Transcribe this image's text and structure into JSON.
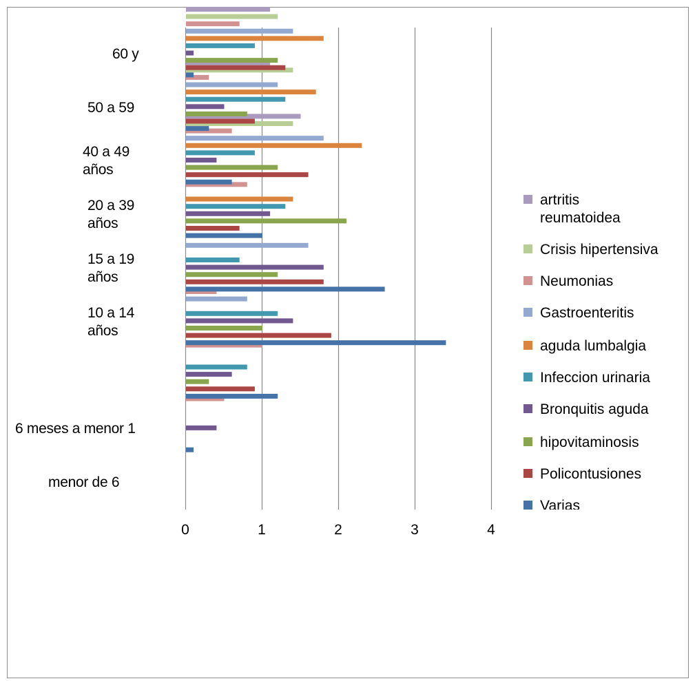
{
  "chart_data": {
    "type": "bar",
    "orientation": "horizontal",
    "categories": [
      "menor de 6",
      "6 meses a menor 1",
      "",
      "10 a 14 años",
      "15 a 19 años",
      "20 a 39 años",
      "40 a 49 años",
      "50 a 59",
      "60 y"
    ],
    "xlim": [
      0,
      4
    ],
    "xticks": [
      "0",
      "1",
      "2",
      "3",
      "4"
    ],
    "grid": true,
    "legend_position": "right",
    "series": [
      {
        "name": "Varias",
        "color": "#4572a7",
        "values": [
          0,
          0.1,
          1.2,
          3.4,
          2.6,
          1.0,
          0.6,
          0.3,
          0.1
        ]
      },
      {
        "name": "Policontusiones",
        "color": "#aa4643",
        "values": [
          0,
          0,
          0.9,
          1.9,
          1.8,
          0.7,
          1.6,
          0.9,
          1.3
        ]
      },
      {
        "name": "hipovitaminosis",
        "color": "#89a54e",
        "values": [
          0,
          0,
          0.3,
          1.0,
          1.2,
          2.1,
          1.2,
          0.8,
          1.2
        ]
      },
      {
        "name": "Bronquitis aguda",
        "color": "#71588f",
        "values": [
          0,
          0.4,
          0.6,
          1.4,
          1.8,
          1.1,
          0.4,
          0.5,
          0.1
        ]
      },
      {
        "name": "Infeccion urinaria",
        "color": "#4198af",
        "values": [
          0,
          0,
          0.8,
          1.2,
          0.7,
          1.3,
          0.9,
          1.3,
          0.9
        ]
      },
      {
        "name": "aguda lumbalgia",
        "color": "#db843d",
        "values": [
          0,
          0,
          0,
          0,
          0,
          1.4,
          2.3,
          1.7,
          1.8
        ]
      },
      {
        "name": "Gastroenteritis",
        "color": "#93a9cf",
        "values": [
          0,
          0,
          0,
          0.8,
          1.6,
          0,
          1.8,
          1.2,
          1.4
        ]
      },
      {
        "name": "Neumonias",
        "color": "#d19392",
        "values": [
          0,
          0.5,
          1.0,
          0.4,
          0,
          0.8,
          0.6,
          0.3,
          0.7
        ]
      },
      {
        "name": "Crisis hipertensiva",
        "color": "#b9cd96",
        "values": [
          0,
          0,
          0,
          0,
          0,
          0,
          1.4,
          1.4,
          1.2
        ]
      },
      {
        "name": "artritis reumatoidea",
        "color": "#a99bbd",
        "values": [
          0,
          0,
          0,
          0,
          0,
          0,
          1.5,
          1.1,
          1.1
        ]
      }
    ],
    "category_labels": [
      {
        "lines": [
          "menor de 6"
        ]
      },
      {
        "lines": [
          "6 meses a menor 1"
        ]
      },
      {
        "lines": []
      },
      {
        "lines": [
          "10 a 14",
          "años"
        ]
      },
      {
        "lines": [
          "15 a 19",
          "años"
        ]
      },
      {
        "lines": [
          "20 a 39",
          "años"
        ]
      },
      {
        "lines": [
          "40 a 49",
          "años"
        ]
      },
      {
        "lines": [
          "50 a 59"
        ]
      },
      {
        "lines": [
          "60 y"
        ]
      }
    ],
    "legend": [
      {
        "text": "artritis reumatoidea",
        "color": "#a99bbd"
      },
      {
        "text": "Crisis hipertensiva",
        "color": "#b9cd96"
      },
      {
        "text": "Neumonias",
        "color": "#d19392"
      },
      {
        "text": "Gastroenteritis",
        "color": "#93a9cf"
      },
      {
        "text": "aguda lumbalgia",
        "color": "#db843d"
      },
      {
        "text": "Infeccion urinaria",
        "color": "#4198af"
      },
      {
        "text": "Bronquitis aguda",
        "color": "#71588f"
      },
      {
        "text": "hipovitaminosis",
        "color": "#89a54e"
      },
      {
        "text": "Policontusiones",
        "color": "#aa4643"
      },
      {
        "text": "Varias",
        "color": "#4572a7"
      }
    ]
  }
}
